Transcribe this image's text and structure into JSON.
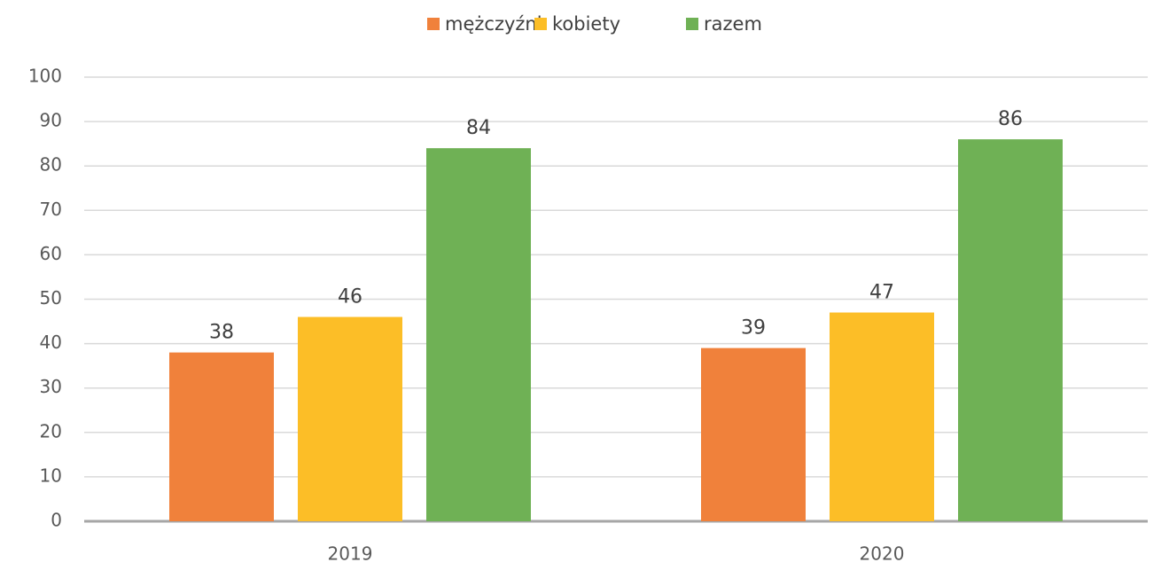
{
  "chart_data": {
    "type": "bar",
    "categories": [
      "2019",
      "2020"
    ],
    "series": [
      {
        "name": "mężczyźni",
        "color": "#f0813b",
        "values": [
          38,
          39
        ]
      },
      {
        "name": "kobiety",
        "color": "#fcbe27",
        "values": [
          46,
          47
        ]
      },
      {
        "name": "razem",
        "color": "#6fb155",
        "values": [
          84,
          86
        ]
      }
    ],
    "ylim": [
      0,
      100
    ],
    "yticks": [
      0,
      10,
      20,
      30,
      40,
      50,
      60,
      70,
      80,
      90,
      100
    ],
    "grid": true,
    "legend": "top"
  }
}
